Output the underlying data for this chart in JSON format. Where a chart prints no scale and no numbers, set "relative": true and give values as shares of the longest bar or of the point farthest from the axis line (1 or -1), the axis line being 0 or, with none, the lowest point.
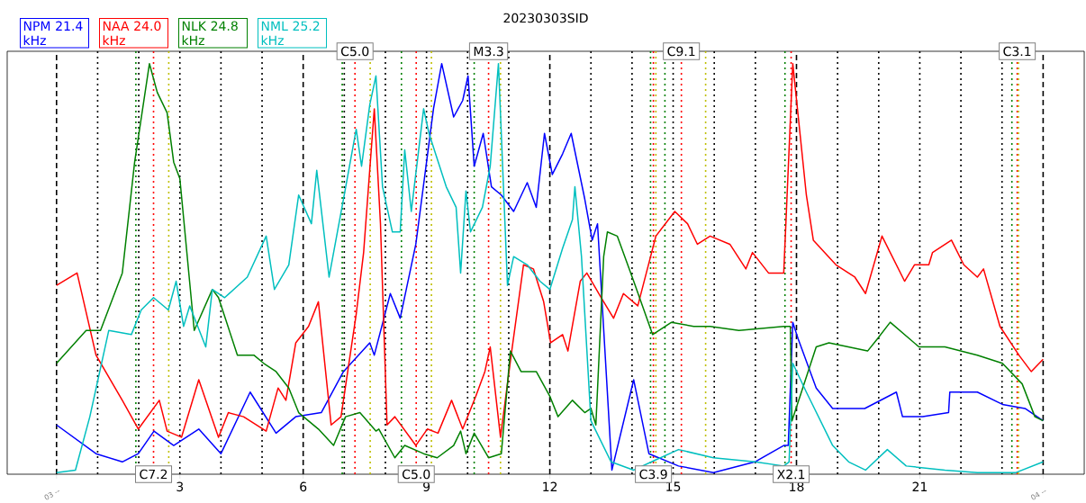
{
  "chart_data": {
    "type": "line",
    "title": "20230303SID",
    "relative": true,
    "legend": "top left",
    "marker": "none",
    "line_style": "solid",
    "xlim": [
      -1.2,
      25
    ],
    "xticks": [
      {
        "value": 0,
        "label": null
      },
      3,
      6,
      9,
      12,
      15,
      18,
      21,
      {
        "value": 24,
        "label": null
      }
    ],
    "series": [
      {
        "name": "NPM 21.4 kHz",
        "color": "#0000ff",
        "x": [
          0,
          0.96,
          1.6,
          1.99,
          2.37,
          2.85,
          3.46,
          4.0,
          4.71,
          5.34,
          5.82,
          6.44,
          6.98,
          7.62,
          7.73,
          8.12,
          8.36,
          8.74,
          9.17,
          9.37,
          9.66,
          9.88,
          10.01,
          10.16,
          10.38,
          10.58,
          10.82,
          11.12,
          11.45,
          11.67,
          11.87,
          12.06,
          12.31,
          12.52,
          12.85,
          13.03,
          13.16,
          13.51,
          14.04,
          14.41,
          15.13,
          15.98,
          16.99,
          17.69,
          17.8,
          17.91,
          18.04,
          18.48,
          18.88,
          19.66,
          20.43,
          20.58,
          21.07,
          21.7,
          21.73,
          22.4,
          23.01,
          23.56,
          24.0
        ],
        "values": [
          0.12,
          0.05,
          0.03,
          0.05,
          0.105,
          0.07,
          0.11,
          0.05,
          0.2,
          0.1,
          0.14,
          0.15,
          0.25,
          0.32,
          0.29,
          0.44,
          0.38,
          0.56,
          0.89,
          1.0,
          0.87,
          0.91,
          0.97,
          0.75,
          0.83,
          0.7,
          0.68,
          0.64,
          0.71,
          0.65,
          0.83,
          0.73,
          0.78,
          0.83,
          0.67,
          0.57,
          0.61,
          0.01,
          0.23,
          0.05,
          0.02,
          0.004,
          0.03,
          0.07,
          0.07,
          0.37,
          0.33,
          0.21,
          0.16,
          0.16,
          0.2,
          0.14,
          0.14,
          0.15,
          0.2,
          0.2,
          0.17,
          0.16,
          0.13
        ]
      },
      {
        "name": "NAA 24.0 kHz",
        "color": "#ff0000",
        "x": [
          0,
          0.5,
          0.96,
          1.6,
          1.99,
          2.5,
          2.69,
          3.04,
          3.46,
          3.94,
          4.18,
          4.55,
          5.1,
          5.39,
          5.58,
          5.82,
          6.13,
          6.37,
          6.68,
          6.92,
          7.29,
          7.47,
          7.73,
          7.88,
          8.04,
          8.23,
          8.74,
          9.02,
          9.28,
          9.61,
          9.88,
          10.2,
          10.42,
          10.55,
          10.8,
          11.06,
          11.36,
          11.6,
          11.85,
          12.02,
          12.31,
          12.44,
          12.74,
          12.9,
          13.25,
          13.55,
          13.79,
          14.14,
          14.58,
          15.04,
          15.35,
          15.59,
          15.9,
          16.38,
          16.77,
          16.93,
          17.32,
          17.69,
          17.91,
          18.24,
          18.41,
          18.96,
          19.42,
          19.68,
          20.08,
          20.63,
          20.87,
          21.22,
          21.31,
          21.77,
          22.07,
          22.4,
          22.55,
          22.95,
          23.41,
          23.71,
          24.0
        ],
        "values": [
          0.46,
          0.49,
          0.29,
          0.18,
          0.11,
          0.18,
          0.105,
          0.09,
          0.23,
          0.09,
          0.15,
          0.14,
          0.105,
          0.21,
          0.18,
          0.32,
          0.36,
          0.42,
          0.12,
          0.14,
          0.39,
          0.54,
          0.89,
          0.61,
          0.12,
          0.14,
          0.07,
          0.11,
          0.1,
          0.18,
          0.11,
          0.19,
          0.25,
          0.31,
          0.09,
          0.29,
          0.51,
          0.5,
          0.42,
          0.32,
          0.34,
          0.3,
          0.47,
          0.49,
          0.43,
          0.38,
          0.44,
          0.41,
          0.58,
          0.64,
          0.61,
          0.56,
          0.58,
          0.56,
          0.5,
          0.54,
          0.49,
          0.49,
          1.0,
          0.68,
          0.57,
          0.51,
          0.48,
          0.44,
          0.58,
          0.47,
          0.51,
          0.51,
          0.54,
          0.57,
          0.51,
          0.48,
          0.5,
          0.36,
          0.29,
          0.25,
          0.28
        ]
      },
      {
        "name": "NLK 24.8 kHz",
        "color": "#008000",
        "x": [
          0,
          0.72,
          1.07,
          1.6,
          1.9,
          2.26,
          2.45,
          2.69,
          2.85,
          3.0,
          3.35,
          3.79,
          3.94,
          4.4,
          4.8,
          5.04,
          5.34,
          5.65,
          5.89,
          6.37,
          6.74,
          7.03,
          7.38,
          7.77,
          7.84,
          8.23,
          8.47,
          8.93,
          9.26,
          9.66,
          9.83,
          9.96,
          10.16,
          10.51,
          10.82,
          11.04,
          11.3,
          11.67,
          12.0,
          12.2,
          12.55,
          12.85,
          13.0,
          13.12,
          13.31,
          13.4,
          13.64,
          14.04,
          14.5,
          14.96,
          15.5,
          15.9,
          16.6,
          17.69,
          17.85,
          17.89,
          18.48,
          18.79,
          19.73,
          19.97,
          20.28,
          20.98,
          21.61,
          22.4,
          23.01,
          23.49,
          23.8,
          24.0
        ],
        "values": [
          0.27,
          0.35,
          0.35,
          0.49,
          0.76,
          1.0,
          0.93,
          0.88,
          0.76,
          0.72,
          0.35,
          0.45,
          0.43,
          0.29,
          0.29,
          0.27,
          0.25,
          0.21,
          0.15,
          0.11,
          0.07,
          0.14,
          0.15,
          0.105,
          0.11,
          0.04,
          0.07,
          0.05,
          0.04,
          0.07,
          0.105,
          0.05,
          0.1,
          0.04,
          0.05,
          0.3,
          0.25,
          0.25,
          0.19,
          0.14,
          0.18,
          0.15,
          0.16,
          0.12,
          0.53,
          0.59,
          0.58,
          0.47,
          0.34,
          0.37,
          0.36,
          0.36,
          0.35,
          0.36,
          0.36,
          0.13,
          0.31,
          0.32,
          0.3,
          0.33,
          0.37,
          0.31,
          0.31,
          0.29,
          0.27,
          0.22,
          0.14,
          0.13
        ]
      },
      {
        "name": "NML 25.2 kHz",
        "color": "#00bfbf",
        "x": [
          0,
          0.46,
          0.81,
          1.27,
          1.82,
          2.06,
          2.36,
          2.72,
          2.91,
          3.09,
          3.24,
          3.63,
          3.79,
          4.09,
          4.64,
          5.1,
          5.3,
          5.65,
          5.89,
          6.2,
          6.33,
          6.63,
          6.98,
          7.29,
          7.42,
          7.62,
          7.77,
          7.93,
          8.17,
          8.36,
          8.47,
          8.63,
          8.93,
          9.06,
          9.48,
          9.72,
          9.83,
          9.96,
          10.07,
          10.36,
          10.55,
          10.75,
          10.97,
          11.12,
          11.45,
          11.76,
          12.0,
          12.31,
          12.55,
          12.61,
          12.77,
          13.0,
          13.49,
          14.04,
          14.58,
          15.13,
          15.98,
          16.99,
          17.69,
          17.82,
          17.91,
          18.24,
          18.88,
          19.27,
          19.68,
          20.21,
          20.67,
          21.61,
          22.4,
          23.34,
          24.0
        ],
        "values": [
          0.004,
          0.01,
          0.14,
          0.35,
          0.34,
          0.4,
          0.43,
          0.4,
          0.47,
          0.36,
          0.41,
          0.31,
          0.45,
          0.43,
          0.48,
          0.58,
          0.45,
          0.51,
          0.68,
          0.61,
          0.74,
          0.48,
          0.67,
          0.84,
          0.75,
          0.9,
          0.97,
          0.7,
          0.59,
          0.59,
          0.79,
          0.64,
          0.89,
          0.83,
          0.7,
          0.65,
          0.49,
          0.69,
          0.59,
          0.65,
          0.75,
          1.0,
          0.46,
          0.53,
          0.51,
          0.47,
          0.45,
          0.55,
          0.62,
          0.7,
          0.53,
          0.13,
          0.03,
          0.01,
          0.035,
          0.06,
          0.04,
          0.03,
          0.02,
          0.03,
          0.27,
          0.2,
          0.07,
          0.03,
          0.01,
          0.06,
          0.02,
          0.01,
          0.004,
          0.004,
          0.03
        ]
      }
    ],
    "ref_lines": [
      {
        "axis": "x",
        "value": 0,
        "color": "#000000",
        "line_style": "dashed"
      },
      {
        "axis": "x",
        "value": 6,
        "color": "#000000",
        "line_style": "dashed"
      },
      {
        "axis": "x",
        "value": 12,
        "color": "#000000",
        "line_style": "dashed"
      },
      {
        "axis": "x",
        "value": 18,
        "color": "#000000",
        "line_style": "dashed"
      },
      {
        "axis": "x",
        "value": 24,
        "color": "#000000",
        "line_style": "dashed"
      },
      {
        "axis": "x",
        "value": 1,
        "color": "#000000",
        "line_style": "dotted"
      },
      {
        "axis": "x",
        "value": 2,
        "color": "#000000",
        "line_style": "dotted"
      },
      {
        "axis": "x",
        "value": 3,
        "color": "#000000",
        "line_style": "dotted"
      },
      {
        "axis": "x",
        "value": 4,
        "color": "#000000",
        "line_style": "dotted"
      },
      {
        "axis": "x",
        "value": 5,
        "color": "#000000",
        "line_style": "dotted"
      },
      {
        "axis": "x",
        "value": 7,
        "color": "#000000",
        "line_style": "dotted"
      },
      {
        "axis": "x",
        "value": 8,
        "color": "#000000",
        "line_style": "dotted"
      },
      {
        "axis": "x",
        "value": 9,
        "color": "#000000",
        "line_style": "dotted"
      },
      {
        "axis": "x",
        "value": 10,
        "color": "#000000",
        "line_style": "dotted"
      },
      {
        "axis": "x",
        "value": 11,
        "color": "#000000",
        "line_style": "dotted"
      },
      {
        "axis": "x",
        "value": 13,
        "color": "#000000",
        "line_style": "dotted"
      },
      {
        "axis": "x",
        "value": 14,
        "color": "#000000",
        "line_style": "dotted"
      },
      {
        "axis": "x",
        "value": 15,
        "color": "#000000",
        "line_style": "dotted"
      },
      {
        "axis": "x",
        "value": 16,
        "color": "#000000",
        "line_style": "dotted"
      },
      {
        "axis": "x",
        "value": 17,
        "color": "#000000",
        "line_style": "dotted"
      },
      {
        "axis": "x",
        "value": 19,
        "color": "#000000",
        "line_style": "dotted"
      },
      {
        "axis": "x",
        "value": 20,
        "color": "#000000",
        "line_style": "dotted"
      },
      {
        "axis": "x",
        "value": 21,
        "color": "#000000",
        "line_style": "dotted"
      },
      {
        "axis": "x",
        "value": 22,
        "color": "#000000",
        "line_style": "dotted"
      },
      {
        "axis": "x",
        "value": 23,
        "color": "#000000",
        "line_style": "dotted"
      },
      {
        "axis": "x",
        "value": 1.93,
        "color": "#008000",
        "line_style": "dotted"
      },
      {
        "axis": "x",
        "value": 6.95,
        "color": "#008000",
        "line_style": "dotted"
      },
      {
        "axis": "x",
        "value": 8.39,
        "color": "#008000",
        "line_style": "dotted"
      },
      {
        "axis": "x",
        "value": 10.16,
        "color": "#008000",
        "line_style": "dotted"
      },
      {
        "axis": "x",
        "value": 14.45,
        "color": "#008000",
        "line_style": "dotted"
      },
      {
        "axis": "x",
        "value": 14.8,
        "color": "#008000",
        "line_style": "dotted"
      },
      {
        "axis": "x",
        "value": 17.72,
        "color": "#008000",
        "line_style": "dotted"
      },
      {
        "axis": "x",
        "value": 23.24,
        "color": "#008000",
        "line_style": "dotted"
      },
      {
        "axis": "x",
        "value": 2.36,
        "color": "#ff0000",
        "line_style": "dotted"
      },
      {
        "axis": "x",
        "value": 7.26,
        "color": "#ff0000",
        "line_style": "dotted"
      },
      {
        "axis": "x",
        "value": 8.75,
        "color": "#ff0000",
        "line_style": "dotted"
      },
      {
        "axis": "x",
        "value": 10.51,
        "color": "#ff0000",
        "line_style": "dotted"
      },
      {
        "axis": "x",
        "value": 14.52,
        "color": "#ff0000",
        "line_style": "dotted"
      },
      {
        "axis": "x",
        "value": 15.2,
        "color": "#ff0000",
        "line_style": "dotted"
      },
      {
        "axis": "x",
        "value": 17.87,
        "color": "#ff0000",
        "line_style": "dotted"
      },
      {
        "axis": "x",
        "value": 23.37,
        "color": "#ff0000",
        "line_style": "dotted"
      },
      {
        "axis": "x",
        "value": 2.73,
        "color": "#bfbf00",
        "line_style": "dotted"
      },
      {
        "axis": "x",
        "value": 7.63,
        "color": "#bfbf00",
        "line_style": "dotted"
      },
      {
        "axis": "x",
        "value": 9.12,
        "color": "#bfbf00",
        "line_style": "dotted"
      },
      {
        "axis": "x",
        "value": 10.8,
        "color": "#bfbf00",
        "line_style": "dotted"
      },
      {
        "axis": "x",
        "value": 14.58,
        "color": "#bfbf00",
        "line_style": "dotted"
      },
      {
        "axis": "x",
        "value": 15.79,
        "color": "#bfbf00",
        "line_style": "dotted"
      },
      {
        "axis": "x",
        "value": 23.4,
        "color": "#bfbf00",
        "line_style": "dotted"
      }
    ],
    "annotations": [
      {
        "text": "C7.2",
        "x": 2.36,
        "y": 0
      },
      {
        "text": "C5.0",
        "x": 7.26,
        "y": 1.03
      },
      {
        "text": "C5.0",
        "x": 8.75,
        "y": 0
      },
      {
        "text": "M3.3",
        "x": 10.51,
        "y": 1.03
      },
      {
        "text": "C3.9",
        "x": 14.52,
        "y": 0
      },
      {
        "text": "C9.1",
        "x": 15.2,
        "y": 1.03
      },
      {
        "text": "X2.1",
        "x": 17.87,
        "y": 0
      },
      {
        "text": "C3.1",
        "x": 23.37,
        "y": 1.03
      },
      {
        "text": "03 --",
        "x": 0,
        "y": 0
      },
      {
        "text": "04 --",
        "x": 24,
        "y": 0
      }
    ]
  }
}
